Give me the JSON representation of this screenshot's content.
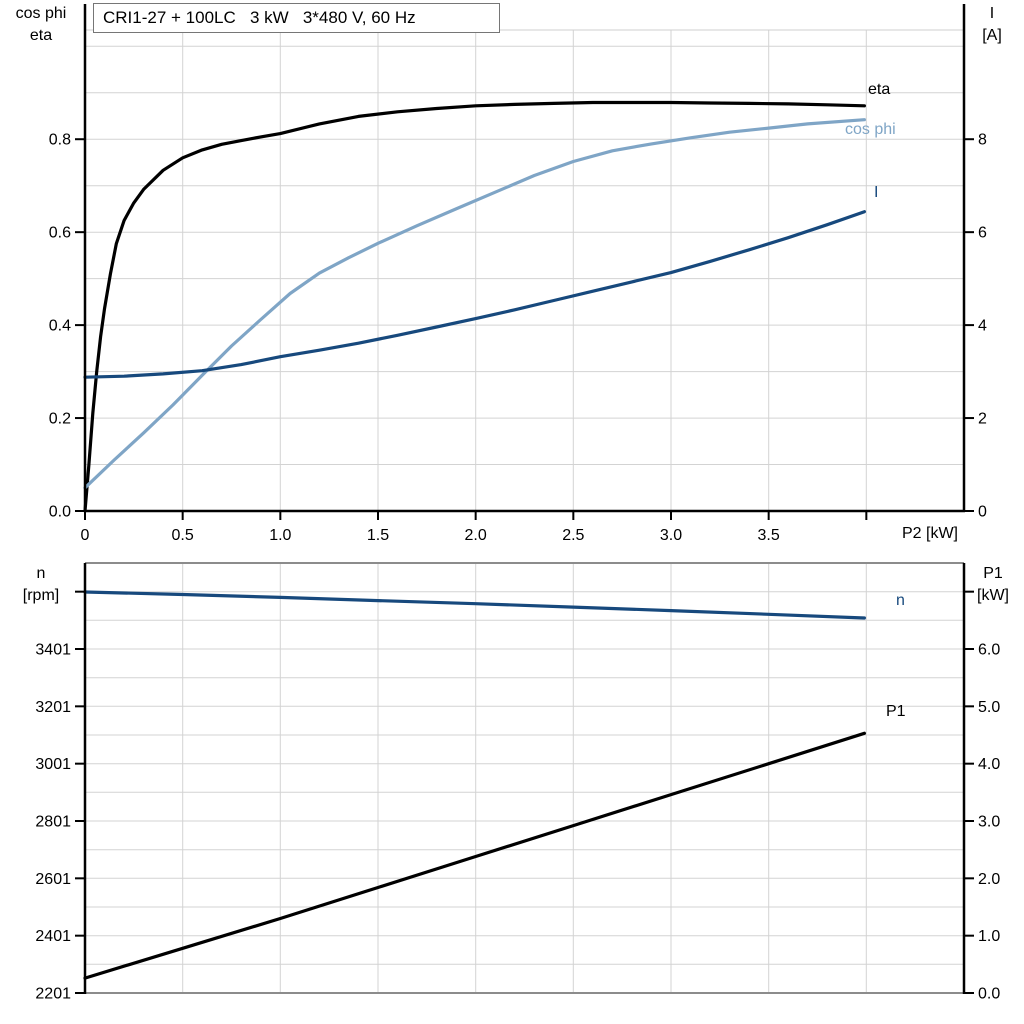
{
  "title_box": {
    "text": "CRI1-27 + 100LC   3 kW   3*480 V, 60 Hz"
  },
  "axis_corner_labels": {
    "top_left": [
      "cos phi",
      "eta"
    ],
    "top_right": [
      "I",
      "[A]"
    ],
    "bottom_left": [
      "n",
      "[rpm]"
    ],
    "bottom_right": [
      "P1",
      "[kW]"
    ]
  },
  "x_axis_label": "P2 [kW]",
  "colors": {
    "curve_black": "#000000",
    "curve_dark_blue": "#17497D",
    "curve_light_blue": "#7FA5C6",
    "gridline": "#D3D3D3",
    "frame_light": "#CFCFCF",
    "frame_dark": "#8C8C8C",
    "axis": "#000000",
    "title_border": "#767676"
  },
  "chart_data": [
    {
      "type": "line",
      "title": "CRI1-27 + 100LC   3 kW   3*480 V, 60 Hz",
      "xlabel": "P2 [kW]",
      "xlim": [
        0,
        4.5
      ],
      "x_gridlines": [
        0.5,
        1.0,
        1.5,
        2.0,
        2.5,
        3.0,
        3.5,
        4.0
      ],
      "x_ticks": [
        {
          "v": 0,
          "label": "0"
        },
        {
          "v": 0.5,
          "label": "0.5"
        },
        {
          "v": 1.0,
          "label": "1.0"
        },
        {
          "v": 1.5,
          "label": "1.5"
        },
        {
          "v": 2.0,
          "label": "2.0"
        },
        {
          "v": 2.5,
          "label": "2.5"
        },
        {
          "v": 3.0,
          "label": "3.0"
        },
        {
          "v": 3.5,
          "label": "3.5"
        },
        {
          "v": 4.0,
          "label": ""
        }
      ],
      "left_axis": {
        "title": "cos phi / eta",
        "range": [
          0,
          1.035
        ],
        "gridlines": [
          0.1,
          0.2,
          0.3,
          0.4,
          0.5,
          0.6,
          0.7,
          0.8,
          0.9,
          1.0
        ],
        "ticks": [
          {
            "v": 0.0,
            "label": "0.0"
          },
          {
            "v": 0.2,
            "label": "0.2"
          },
          {
            "v": 0.4,
            "label": "0.4"
          },
          {
            "v": 0.6,
            "label": "0.6"
          },
          {
            "v": 0.8,
            "label": "0.8"
          }
        ]
      },
      "right_axis": {
        "title": "I [A]",
        "range": [
          0,
          10.35
        ],
        "ticks": [
          {
            "v": 0,
            "label": "0"
          },
          {
            "v": 2,
            "label": "2"
          },
          {
            "v": 4,
            "label": "4"
          },
          {
            "v": 6,
            "label": "6"
          },
          {
            "v": 8,
            "label": "8"
          }
        ]
      },
      "series": [
        {
          "name": "eta",
          "axis": "left",
          "color": "#000000",
          "points": [
            [
              0,
              0
            ],
            [
              0.02,
              0.1
            ],
            [
              0.04,
              0.21
            ],
            [
              0.06,
              0.3
            ],
            [
              0.08,
              0.375
            ],
            [
              0.1,
              0.435
            ],
            [
              0.13,
              0.51
            ],
            [
              0.16,
              0.575
            ],
            [
              0.2,
              0.625
            ],
            [
              0.25,
              0.663
            ],
            [
              0.3,
              0.692
            ],
            [
              0.4,
              0.733
            ],
            [
              0.5,
              0.76
            ],
            [
              0.6,
              0.777
            ],
            [
              0.7,
              0.789
            ],
            [
              0.8,
              0.797
            ],
            [
              0.9,
              0.805
            ],
            [
              1.0,
              0.812
            ],
            [
              1.2,
              0.833
            ],
            [
              1.4,
              0.849
            ],
            [
              1.6,
              0.859
            ],
            [
              1.8,
              0.866
            ],
            [
              2.0,
              0.872
            ],
            [
              2.2,
              0.875
            ],
            [
              2.4,
              0.877
            ],
            [
              2.6,
              0.879
            ],
            [
              2.8,
              0.879
            ],
            [
              3.0,
              0.879
            ],
            [
              3.2,
              0.878
            ],
            [
              3.4,
              0.877
            ],
            [
              3.6,
              0.876
            ],
            [
              3.8,
              0.874
            ],
            [
              3.99,
              0.872
            ]
          ]
        },
        {
          "name": "cos phi",
          "axis": "left",
          "color": "#7FA5C6",
          "points": [
            [
              0,
              0.05
            ],
            [
              0.15,
              0.11
            ],
            [
              0.3,
              0.168
            ],
            [
              0.45,
              0.228
            ],
            [
              0.6,
              0.292
            ],
            [
              0.75,
              0.355
            ],
            [
              0.9,
              0.412
            ],
            [
              1.05,
              0.468
            ],
            [
              1.2,
              0.512
            ],
            [
              1.35,
              0.545
            ],
            [
              1.5,
              0.576
            ],
            [
              1.7,
              0.614
            ],
            [
              1.9,
              0.65
            ],
            [
              2.1,
              0.686
            ],
            [
              2.3,
              0.722
            ],
            [
              2.5,
              0.752
            ],
            [
              2.7,
              0.775
            ],
            [
              2.9,
              0.79
            ],
            [
              3.1,
              0.803
            ],
            [
              3.3,
              0.815
            ],
            [
              3.5,
              0.824
            ],
            [
              3.7,
              0.833
            ],
            [
              3.99,
              0.842
            ]
          ]
        },
        {
          "name": "I",
          "axis": "right",
          "color": "#17497D",
          "points": [
            [
              0,
              2.88
            ],
            [
              0.2,
              2.9
            ],
            [
              0.4,
              2.95
            ],
            [
              0.6,
              3.02
            ],
            [
              0.8,
              3.15
            ],
            [
              1.0,
              3.32
            ],
            [
              1.2,
              3.46
            ],
            [
              1.4,
              3.61
            ],
            [
              1.6,
              3.78
            ],
            [
              1.8,
              3.96
            ],
            [
              2.0,
              4.14
            ],
            [
              2.2,
              4.33
            ],
            [
              2.4,
              4.53
            ],
            [
              2.6,
              4.73
            ],
            [
              2.8,
              4.93
            ],
            [
              3.0,
              5.13
            ],
            [
              3.2,
              5.37
            ],
            [
              3.4,
              5.62
            ],
            [
              3.6,
              5.88
            ],
            [
              3.8,
              6.16
            ],
            [
              3.99,
              6.44
            ]
          ]
        }
      ]
    },
    {
      "type": "line",
      "title": "",
      "xlabel": "",
      "xlim": [
        0,
        4.5
      ],
      "x_gridlines": [
        0.5,
        1.0,
        1.5,
        2.0,
        2.5,
        3.0,
        3.5,
        4.0
      ],
      "x_ticks": [],
      "left_axis": {
        "title": "n [rpm]",
        "range": [
          2201,
          3701
        ],
        "gridlines": [
          2301,
          2401,
          2501,
          2601,
          2701,
          2801,
          2901,
          3001,
          3101,
          3201,
          3301,
          3401,
          3501,
          3601
        ],
        "ticks": [
          {
            "v": 2201,
            "label": "2201"
          },
          {
            "v": 2401,
            "label": "2401"
          },
          {
            "v": 2601,
            "label": "2601"
          },
          {
            "v": 2801,
            "label": "2801"
          },
          {
            "v": 3001,
            "label": "3001"
          },
          {
            "v": 3201,
            "label": "3201"
          },
          {
            "v": 3401,
            "label": "3401"
          },
          {
            "v": 3601,
            "label": ""
          }
        ]
      },
      "right_axis": {
        "title": "P1 [kW]",
        "range": [
          0,
          7.5
        ],
        "ticks": [
          {
            "v": 0,
            "label": "0.0"
          },
          {
            "v": 1,
            "label": "1.0"
          },
          {
            "v": 2,
            "label": "2.0"
          },
          {
            "v": 3,
            "label": "3.0"
          },
          {
            "v": 4,
            "label": "4.0"
          },
          {
            "v": 5,
            "label": "5.0"
          },
          {
            "v": 6,
            "label": "6.0"
          },
          {
            "v": 7,
            "label": ""
          }
        ]
      },
      "series": [
        {
          "name": "n",
          "axis": "left",
          "color": "#17497D",
          "points": [
            [
              0,
              3600
            ],
            [
              0.5,
              3591
            ],
            [
              1.0,
              3581
            ],
            [
              1.5,
              3570
            ],
            [
              2.0,
              3559
            ],
            [
              2.5,
              3547
            ],
            [
              3.0,
              3535
            ],
            [
              3.5,
              3522
            ],
            [
              3.99,
              3509
            ]
          ]
        },
        {
          "name": "P1",
          "axis": "right",
          "color": "#000000",
          "points": [
            [
              0,
              0.26
            ],
            [
              0.5,
              0.78
            ],
            [
              1.0,
              1.3
            ],
            [
              1.5,
              1.84
            ],
            [
              2.0,
              2.38
            ],
            [
              2.5,
              2.92
            ],
            [
              3.0,
              3.46
            ],
            [
              3.5,
              4.0
            ],
            [
              3.99,
              4.53
            ]
          ]
        }
      ]
    }
  ]
}
